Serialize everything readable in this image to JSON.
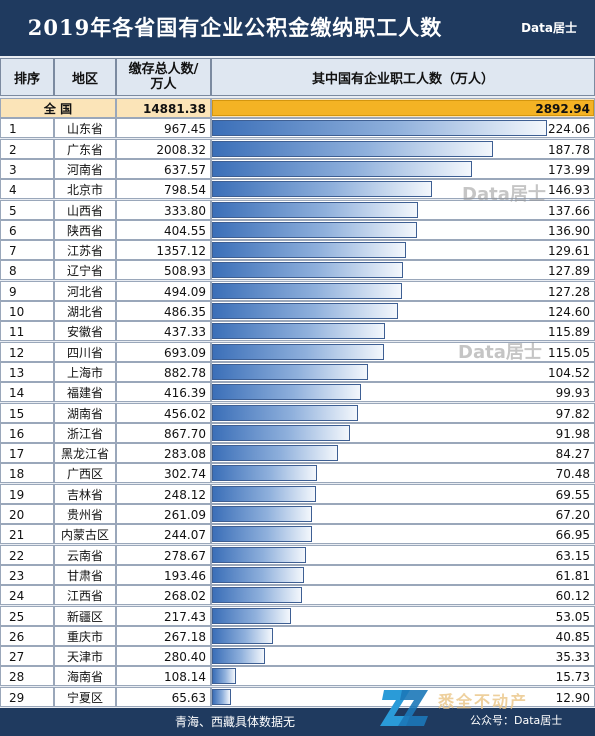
{
  "header": {
    "title": "2019年各省国有企业公积金缴纳职工人数",
    "brand": "Data居士"
  },
  "columns": {
    "rank": "排序",
    "region": "地区",
    "deposit": "缴存总人数/\n万人",
    "employees": "其中国有企业职工人数（万人）"
  },
  "total": {
    "region": "全    国",
    "deposit": "14881.38",
    "employees": 2892.94,
    "employees_label": "2892.94"
  },
  "rows": [
    {
      "rank": "1",
      "region": "山东省",
      "deposit": "967.45",
      "employees": 224.06,
      "employees_label": "224.06"
    },
    {
      "rank": "2",
      "region": "广东省",
      "deposit": "2008.32",
      "employees": 187.78,
      "employees_label": "187.78"
    },
    {
      "rank": "3",
      "region": "河南省",
      "deposit": "637.57",
      "employees": 173.99,
      "employees_label": "173.99"
    },
    {
      "rank": "4",
      "region": "北京市",
      "deposit": "798.54",
      "employees": 146.93,
      "employees_label": "146.93"
    },
    {
      "rank": "5",
      "region": "山西省",
      "deposit": "333.80",
      "employees": 137.66,
      "employees_label": "137.66"
    },
    {
      "rank": "6",
      "region": "陕西省",
      "deposit": "404.55",
      "employees": 136.9,
      "employees_label": "136.90"
    },
    {
      "rank": "7",
      "region": "江苏省",
      "deposit": "1357.12",
      "employees": 129.61,
      "employees_label": "129.61"
    },
    {
      "rank": "8",
      "region": "辽宁省",
      "deposit": "508.93",
      "employees": 127.89,
      "employees_label": "127.89"
    },
    {
      "rank": "9",
      "region": "河北省",
      "deposit": "494.09",
      "employees": 127.28,
      "employees_label": "127.28"
    },
    {
      "rank": "10",
      "region": "湖北省",
      "deposit": "486.35",
      "employees": 124.6,
      "employees_label": "124.60"
    },
    {
      "rank": "11",
      "region": "安徽省",
      "deposit": "437.33",
      "employees": 115.89,
      "employees_label": "115.89"
    },
    {
      "rank": "12",
      "region": "四川省",
      "deposit": "693.09",
      "employees": 115.05,
      "employees_label": "115.05"
    },
    {
      "rank": "13",
      "region": "上海市",
      "deposit": "882.78",
      "employees": 104.52,
      "employees_label": "104.52"
    },
    {
      "rank": "14",
      "region": "福建省",
      "deposit": "416.39",
      "employees": 99.93,
      "employees_label": "99.93"
    },
    {
      "rank": "15",
      "region": "湖南省",
      "deposit": "456.02",
      "employees": 97.82,
      "employees_label": "97.82"
    },
    {
      "rank": "16",
      "region": "浙江省",
      "deposit": "867.70",
      "employees": 91.98,
      "employees_label": "91.98"
    },
    {
      "rank": "17",
      "region": "黑龙江省",
      "deposit": "283.08",
      "employees": 84.27,
      "employees_label": "84.27"
    },
    {
      "rank": "18",
      "region": "广西区",
      "deposit": "302.74",
      "employees": 70.48,
      "employees_label": "70.48"
    },
    {
      "rank": "19",
      "region": "吉林省",
      "deposit": "248.12",
      "employees": 69.55,
      "employees_label": "69.55"
    },
    {
      "rank": "20",
      "region": "贵州省",
      "deposit": "261.09",
      "employees": 67.2,
      "employees_label": "67.20"
    },
    {
      "rank": "21",
      "region": "内蒙古区",
      "deposit": "244.07",
      "employees": 66.95,
      "employees_label": "66.95"
    },
    {
      "rank": "22",
      "region": "云南省",
      "deposit": "278.67",
      "employees": 63.15,
      "employees_label": "63.15"
    },
    {
      "rank": "23",
      "region": "甘肃省",
      "deposit": "193.46",
      "employees": 61.81,
      "employees_label": "61.81"
    },
    {
      "rank": "24",
      "region": "江西省",
      "deposit": "268.02",
      "employees": 60.12,
      "employees_label": "60.12"
    },
    {
      "rank": "25",
      "region": "新疆区",
      "deposit": "217.43",
      "employees": 53.05,
      "employees_label": "53.05"
    },
    {
      "rank": "26",
      "region": "重庆市",
      "deposit": "267.18",
      "employees": 40.85,
      "employees_label": "40.85"
    },
    {
      "rank": "27",
      "region": "天津市",
      "deposit": "280.40",
      "employees": 35.33,
      "employees_label": "35.33"
    },
    {
      "rank": "28",
      "region": "海南省",
      "deposit": "108.14",
      "employees": 15.73,
      "employees_label": "15.73"
    },
    {
      "rank": "29",
      "region": "宁夏区",
      "deposit": "65.63",
      "employees": 12.9,
      "employees_label": "12.90"
    }
  ],
  "footer": {
    "note": "青海、西藏具体数据无",
    "logo_text": "悉全不动产",
    "public_account": "公众号：Data居士"
  },
  "watermarks": [
    "Data居士",
    "Data居士"
  ],
  "colors": {
    "title_bg": "#1f3a5f",
    "bar": "#3b6fb8",
    "total_bar": "#f4b324"
  },
  "chart_data": {
    "type": "bar",
    "title": "2019年各省国有企业公积金缴纳职工人数",
    "ylabel": "其中国有企业职工人数（万人）",
    "categories": [
      "山东省",
      "广东省",
      "河南省",
      "北京市",
      "山西省",
      "陕西省",
      "江苏省",
      "辽宁省",
      "河北省",
      "湖北省",
      "安徽省",
      "四川省",
      "上海市",
      "福建省",
      "湖南省",
      "浙江省",
      "黑龙江省",
      "广西区",
      "吉林省",
      "贵州省",
      "内蒙古区",
      "云南省",
      "甘肃省",
      "江西省",
      "新疆区",
      "重庆市",
      "天津市",
      "海南省",
      "宁夏区"
    ],
    "values": [
      224.06,
      187.78,
      173.99,
      146.93,
      137.66,
      136.9,
      129.61,
      127.89,
      127.28,
      124.6,
      115.89,
      115.05,
      104.52,
      99.93,
      97.82,
      91.98,
      84.27,
      70.48,
      69.55,
      67.2,
      66.95,
      63.15,
      61.81,
      60.12,
      53.05,
      40.85,
      35.33,
      15.73,
      12.9
    ],
    "total": 2892.94
  }
}
